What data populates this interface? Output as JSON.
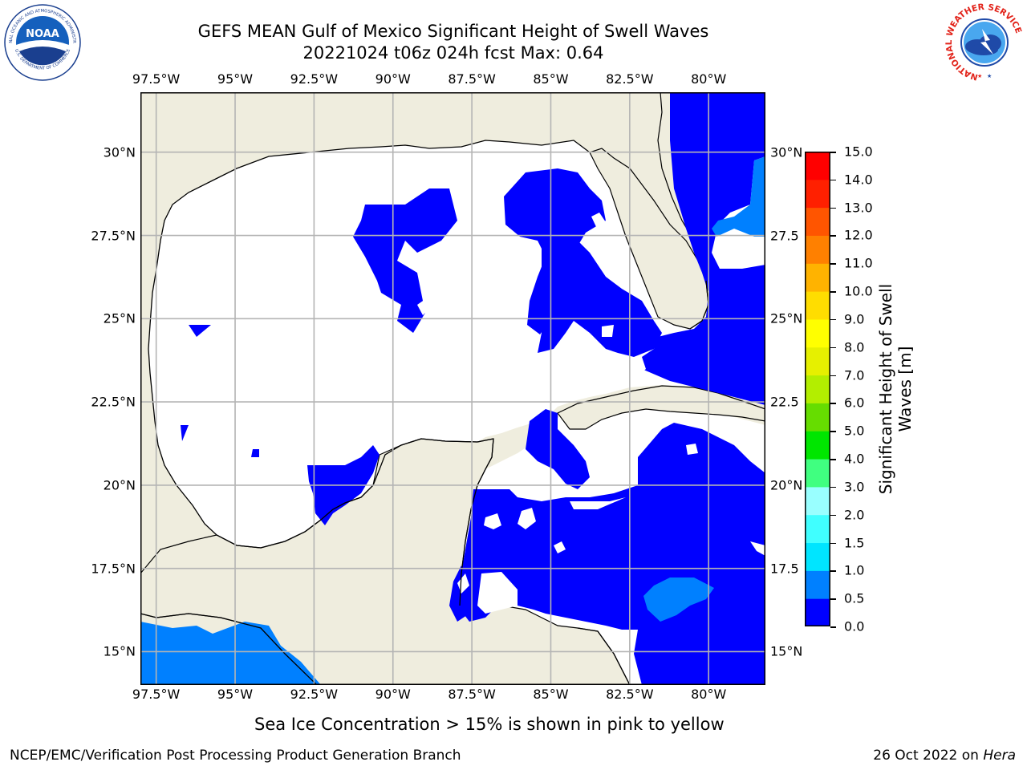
{
  "title": {
    "line1": "GEFS MEAN Gulf of Mexico Significant Height of Swell Waves",
    "line2": "20221024 t06z 024h fcst   Max: 0.64"
  },
  "map": {
    "lon_ticks": [
      "97.5°W",
      "95°W",
      "92.5°W",
      "90°W",
      "87.5°W",
      "85°W",
      "82.5°W",
      "80°W"
    ],
    "lat_ticks_left": [
      "30°N",
      "27.5°N",
      "25°N",
      "22.5°N",
      "20°N",
      "17.5°N",
      "15°N"
    ],
    "lat_ticks_right": [
      "30°N",
      "27.5",
      "25°N",
      "22.5",
      "20°N",
      "17.5",
      "15°N"
    ],
    "lon_values": [
      -97.5,
      -95,
      -92.5,
      -90,
      -87.5,
      -85,
      -82.5,
      -80
    ],
    "lat_values": [
      30,
      27.5,
      25,
      22.5,
      20,
      17.5,
      15
    ],
    "extent": {
      "lon": [
        -98,
        -78.2
      ],
      "lat": [
        14,
        31.8
      ]
    },
    "colors": {
      "land": "#efedde",
      "water_zero": "#ffffff",
      "grid": "#b4b4b4",
      "coast": "#000000"
    }
  },
  "colorbar": {
    "label_line1": "Significant Height of Swell",
    "label_line2": "Waves [m]",
    "ticks": [
      "15.0",
      "14.0",
      "13.0",
      "12.0",
      "11.0",
      "10.0",
      "9.0",
      "8.0",
      "7.0",
      "6.0",
      "5.0",
      "4.0",
      "3.0",
      "2.0",
      "1.5",
      "1.0",
      "0.5",
      "0.0"
    ],
    "levels": [
      0,
      0.5,
      1.0,
      1.5,
      2.0,
      3.0,
      4.0,
      5.0,
      6.0,
      7.0,
      8.0,
      9.0,
      10.0,
      11.0,
      12.0,
      13.0,
      14.0,
      15.0
    ],
    "colors": [
      "#0000ff",
      "#0080ff",
      "#00e5ff",
      "#40ffff",
      "#99ffff",
      "#40ff80",
      "#00e600",
      "#66dd00",
      "#b3ee00",
      "#e6f000",
      "#ffff00",
      "#ffdd00",
      "#ffb300",
      "#ff8000",
      "#ff5500",
      "#ff2000",
      "#ff0000"
    ]
  },
  "note": "Sea Ice Concentration > 15% is shown in pink to yellow",
  "footer": {
    "left": "NCEP/EMC/Verification Post Processing Product Generation Branch",
    "date": "26 Oct 2022 on ",
    "machine": "Hera"
  },
  "logos": {
    "noaa_text": "NOAA",
    "noaa_ring_top": "NATIONAL OCEANIC AND ATMOSPHERIC ADMINISTRATION",
    "noaa_ring_bottom": "U.S. DEPARTMENT OF COMMERCE",
    "nws_ring": "NATIONAL WEATHER SERVICE"
  }
}
